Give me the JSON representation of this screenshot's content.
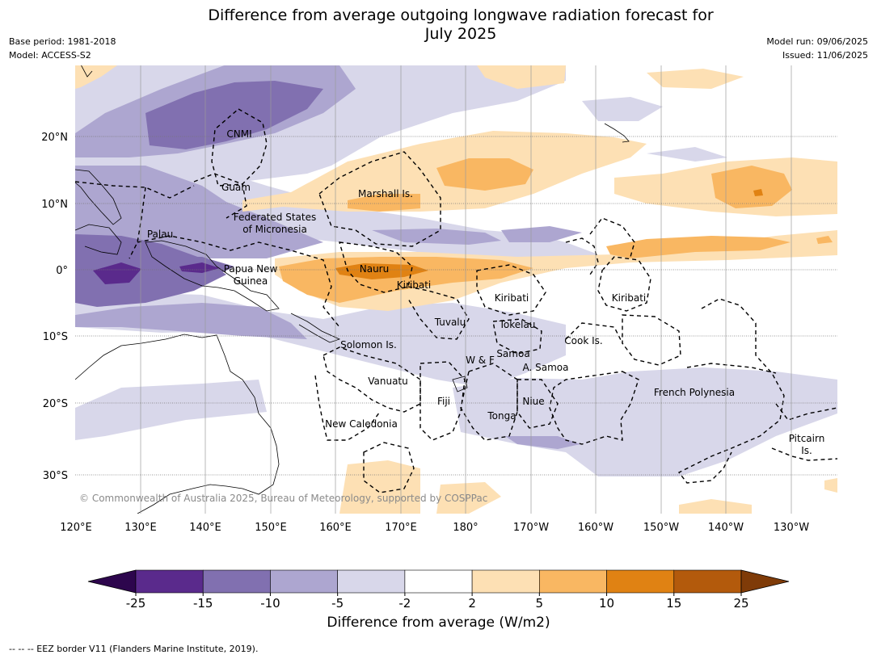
{
  "title_line1": "Difference from average outgoing longwave radiation forecast for",
  "title_line2": "July 2025",
  "meta_left": [
    "Base period: 1981-2018",
    "Model: ACCESS-S2"
  ],
  "meta_right": [
    "Model run: 09/06/2025",
    "Issued: 11/06/2025"
  ],
  "lat_labels": [
    "20°N",
    "10°N",
    "0°",
    "10°S",
    "20°S",
    "30°S"
  ],
  "lon_labels": [
    "120°E",
    "130°E",
    "140°E",
    "150°E",
    "160°E",
    "170°E",
    "180°",
    "170°W",
    "160°W",
    "150°W",
    "140°W",
    "130°W"
  ],
  "region_labels": [
    "CNMI",
    "Guam",
    "Marshall Is.",
    "Federated States",
    "of Micronesia",
    "Palau",
    "Papua New",
    "Guinea",
    "Nauru",
    "Kiribati",
    "Kiribati",
    "Kiribati",
    "Tuvalu",
    "Tokelau",
    "Solomon Is.",
    "W & F",
    "Samoa",
    "A. Samoa",
    "Cook Is.",
    "Vanuatu",
    "Fiji",
    "Niue",
    "Tonga",
    "French Polynesia",
    "New Caledonia",
    "Pitcairn",
    "Is."
  ],
  "copyright": "© Commonwealth of Australia 2025, Bureau of Meteorology, supported by COSPPac",
  "colorbar": {
    "ticks": [
      "-25",
      "-15",
      "-10",
      "-5",
      "-2",
      "2",
      "5",
      "10",
      "15",
      "25"
    ],
    "colors": [
      "#5a2a8c",
      "#8170b0",
      "#ada6d0",
      "#d8d7ea",
      "#ffffff",
      "#fde0b4",
      "#f9b762",
      "#e08213",
      "#b35a0c"
    ],
    "under_color": "#2d064d",
    "over_color": "#7f3b08",
    "title": "Difference from average (W/m2)"
  },
  "footer_note": "-- -- -- EEZ border V11 (Flanders Marine Institute, 2019)."
}
